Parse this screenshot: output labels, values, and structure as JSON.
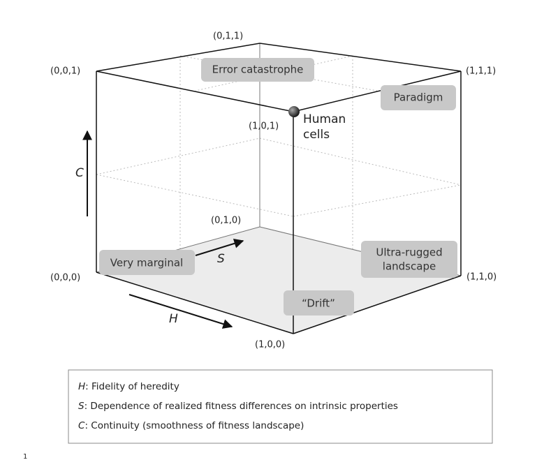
{
  "corners": [
    "(0,0,1)",
    "(0,1,1)",
    "(1,1,1)",
    "(1,0,1)",
    "(0,1,0)",
    "(0,0,0)",
    "(1,1,0)",
    "(1,0,0)"
  ],
  "regions": [
    {
      "lines": [
        "Error catastrophe"
      ]
    },
    {
      "lines": [
        "Paradigm"
      ]
    },
    {
      "lines": [
        "Very marginal"
      ]
    },
    {
      "lines": [
        "Ultra-rugged",
        "landscape"
      ]
    },
    {
      "lines": [
        "“Drift”"
      ]
    }
  ],
  "point": {
    "lines": [
      "Human",
      "cells"
    ]
  },
  "axes": {
    "c": "C",
    "s": "S",
    "h": "H"
  },
  "legend": [
    {
      "symbol": "H",
      "text": ": Fidelity of heredity"
    },
    {
      "symbol": "S",
      "text": ": Dependence of realized fitness differences on intrinsic properties"
    },
    {
      "symbol": "C",
      "text": ": Continuity (smoothness of fitness landscape)"
    }
  ],
  "footnote": "1"
}
